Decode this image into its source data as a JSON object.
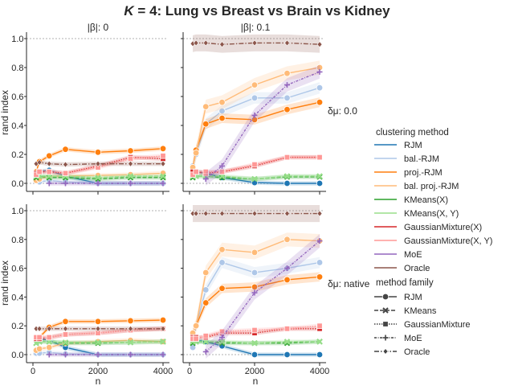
{
  "chart_data": {
    "type": "line",
    "title_var": "K",
    "title_rest": " = 4: Lung vs Breast vs Brain vs Kidney",
    "xlabel": "n",
    "ylabel": "rand index",
    "xlim": [
      0,
      4000
    ],
    "ylim": [
      0,
      1
    ],
    "xticks": [
      "0",
      "2000",
      "4000"
    ],
    "yticks": [
      "0.0",
      "0.2",
      "0.4",
      "0.6",
      "0.8",
      "1.0"
    ],
    "reference_lines": [
      0.0,
      1.0
    ],
    "col_labels": [
      "|β|: 0",
      "|β|: 0.1"
    ],
    "row_labels": [
      "δμ: 0.0",
      "δμ: native"
    ],
    "x": [
      100,
      200,
      500,
      1000,
      2000,
      3000,
      4000
    ],
    "methods": [
      {
        "name": "RJM",
        "color": "#1f77b4",
        "family": "RJM"
      },
      {
        "name": "bal.-RJM",
        "color": "#aec7e8",
        "family": "RJM"
      },
      {
        "name": "proj.-RJM",
        "color": "#ff7f0e",
        "family": "RJM"
      },
      {
        "name": "bal. proj.-RJM",
        "color": "#ffbb78",
        "family": "RJM"
      },
      {
        "name": "KMeans(X)",
        "color": "#2ca02c",
        "family": "KMeans"
      },
      {
        "name": "KMeans(X, Y)",
        "color": "#98df8a",
        "family": "KMeans"
      },
      {
        "name": "GaussianMixture(X)",
        "color": "#d62728",
        "family": "GaussianMixture"
      },
      {
        "name": "GaussianMixture(X, Y)",
        "color": "#ff9896",
        "family": "GaussianMixture"
      },
      {
        "name": "MoE",
        "color": "#9467bd",
        "family": "MoE"
      },
      {
        "name": "Oracle",
        "color": "#8c564b",
        "family": "Oracle"
      }
    ],
    "families": [
      {
        "name": "RJM",
        "marker": "circle",
        "dash": "solid"
      },
      {
        "name": "KMeans",
        "marker": "x",
        "dash": "dashed"
      },
      {
        "name": "GaussianMixture",
        "marker": "square",
        "dash": "dotted"
      },
      {
        "name": "MoE",
        "marker": "plus",
        "dash": "dashdot-fine"
      },
      {
        "name": "Oracle",
        "marker": "diamond",
        "dash": "dashdot"
      }
    ],
    "legend": {
      "title_methods": "clustering method",
      "title_families": "method family",
      "placement": "right"
    },
    "panels": [
      {
        "row": 0,
        "col": 0,
        "series": {
          "RJM": [
            0.08,
            0.08,
            0.09,
            0.05,
            0.0,
            0.0,
            0.0
          ],
          "bal.-RJM": [
            0.02,
            0.01,
            0.02,
            0.01,
            0.0,
            0.0,
            0.0
          ],
          "proj.-RJM": [
            0.08,
            0.15,
            0.19,
            0.235,
            0.215,
            0.225,
            0.24
          ],
          "bal. proj.-RJM": [
            0.02,
            0.03,
            0.05,
            0.05,
            0.055,
            0.06,
            0.07
          ],
          "KMeans(X)": [
            0.04,
            0.05,
            0.04,
            0.04,
            0.03,
            0.04,
            0.04
          ],
          "KMeans(X, Y)": [
            0.05,
            0.05,
            0.05,
            0.05,
            0.04,
            0.05,
            0.05
          ],
          "GaussianMixture(X)": [
            0.07,
            0.08,
            0.08,
            0.07,
            0.12,
            0.18,
            0.17
          ],
          "GaussianMixture(X, Y)": [
            0.06,
            0.08,
            0.08,
            0.07,
            0.11,
            0.17,
            0.19
          ],
          "MoE": [
            null,
            null,
            0.0,
            0.0,
            0.0,
            0.0,
            0.0
          ],
          "Oracle": [
            0.135,
            0.145,
            0.135,
            0.13,
            0.135,
            0.135,
            0.135
          ]
        }
      },
      {
        "row": 0,
        "col": 1,
        "series": {
          "RJM": [
            0.09,
            0.08,
            0.07,
            0.04,
            0.005,
            0.0,
            0.0
          ],
          "bal.-RJM": [
            0.12,
            0.2,
            0.41,
            0.5,
            0.59,
            0.59,
            0.66
          ],
          "proj.-RJM": [
            0.11,
            0.23,
            0.41,
            0.45,
            0.44,
            0.51,
            0.56
          ],
          "bal. proj.-RJM": [
            0.11,
            0.21,
            0.53,
            0.56,
            0.68,
            0.76,
            0.8
          ],
          "KMeans(X)": [
            0.04,
            0.05,
            0.05,
            0.04,
            0.03,
            0.045,
            0.045
          ],
          "KMeans(X, Y)": [
            0.05,
            0.05,
            0.05,
            0.05,
            0.03,
            0.05,
            0.05
          ],
          "GaussianMixture(X)": [
            0.08,
            0.08,
            0.07,
            0.08,
            0.12,
            0.18,
            0.18
          ],
          "GaussianMixture(X, Y)": [
            0.06,
            0.08,
            0.08,
            0.08,
            0.13,
            0.18,
            0.18
          ],
          "MoE": [
            null,
            null,
            0.03,
            0.12,
            0.47,
            0.68,
            0.77
          ],
          "Oracle": [
            0.965,
            0.97,
            0.97,
            0.96,
            0.97,
            0.97,
            0.96
          ]
        }
      },
      {
        "row": 1,
        "col": 0,
        "series": {
          "RJM": [
            0.11,
            0.11,
            0.1,
            0.05,
            0.0,
            0.0,
            0.0
          ],
          "bal.-RJM": [
            0.01,
            0.01,
            0.015,
            0.005,
            0.0,
            0.0,
            0.0
          ],
          "proj.-RJM": [
            0.11,
            0.12,
            0.19,
            0.23,
            0.23,
            0.235,
            0.24
          ],
          "bal. proj.-RJM": [
            0.03,
            0.04,
            0.05,
            0.08,
            0.09,
            0.1,
            0.09
          ],
          "KMeans(X)": [
            0.08,
            0.09,
            0.09,
            0.08,
            0.08,
            0.085,
            0.09
          ],
          "KMeans(X, Y)": [
            0.08,
            0.09,
            0.09,
            0.085,
            0.085,
            0.085,
            0.09
          ],
          "GaussianMixture(X)": [
            0.11,
            0.11,
            0.12,
            0.14,
            0.15,
            0.17,
            0.18
          ],
          "GaussianMixture(X, Y)": [
            0.12,
            0.12,
            0.12,
            0.14,
            0.15,
            0.17,
            0.18
          ],
          "MoE": [
            null,
            null,
            0.0,
            0.0,
            0.0,
            0.0,
            0.0
          ],
          "Oracle": [
            0.18,
            0.18,
            0.18,
            0.18,
            0.18,
            0.18,
            0.18
          ]
        }
      },
      {
        "row": 1,
        "col": 1,
        "series": {
          "RJM": [
            0.1,
            0.1,
            0.09,
            0.06,
            0.0,
            0.0,
            0.0
          ],
          "bal.-RJM": [
            0.05,
            0.2,
            0.45,
            0.64,
            0.57,
            0.6,
            0.64
          ],
          "proj.-RJM": [
            0.15,
            0.2,
            0.36,
            0.46,
            0.47,
            0.52,
            0.54
          ],
          "bal. proj.-RJM": [
            0.15,
            0.2,
            0.57,
            0.73,
            0.71,
            0.8,
            0.79
          ],
          "KMeans(X)": [
            0.08,
            0.09,
            0.09,
            0.08,
            0.08,
            0.08,
            0.09
          ],
          "KMeans(X, Y)": [
            0.09,
            0.09,
            0.09,
            0.09,
            0.08,
            0.09,
            0.09
          ],
          "GaussianMixture(X)": [
            0.12,
            0.12,
            0.12,
            0.15,
            0.15,
            0.18,
            0.18
          ],
          "GaussianMixture(X, Y)": [
            0.11,
            0.11,
            0.13,
            0.16,
            0.17,
            0.18,
            0.2
          ],
          "MoE": [
            null,
            null,
            0.02,
            0.12,
            0.43,
            0.6,
            0.79
          ],
          "Oracle": [
            0.98,
            0.98,
            0.98,
            0.98,
            0.98,
            0.98,
            0.98
          ]
        }
      }
    ]
  }
}
